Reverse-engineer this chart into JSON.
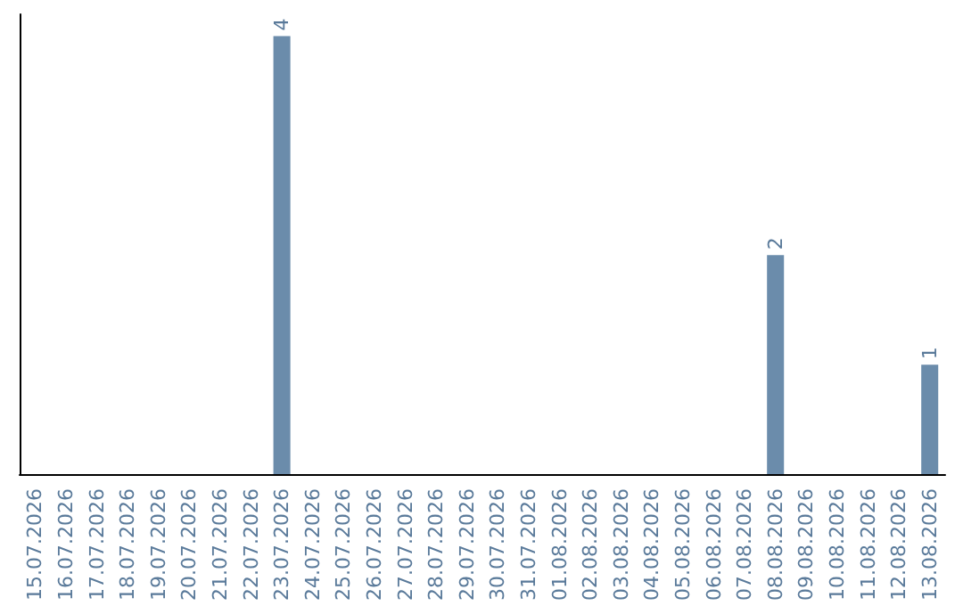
{
  "chart_data": {
    "type": "bar",
    "categories": [
      "15.07.2026",
      "16.07.2026",
      "17.07.2026",
      "18.07.2026",
      "19.07.2026",
      "20.07.2026",
      "21.07.2026",
      "22.07.2026",
      "23.07.2026",
      "24.07.2026",
      "25.07.2026",
      "26.07.2026",
      "27.07.2026",
      "28.07.2026",
      "29.07.2026",
      "30.07.2026",
      "31.07.2026",
      "01.08.2026",
      "02.08.2026",
      "03.08.2026",
      "04.08.2026",
      "05.08.2026",
      "06.08.2026",
      "07.08.2026",
      "08.08.2026",
      "09.08.2026",
      "10.08.2026",
      "11.08.2026",
      "12.08.2026",
      "13.08.2026"
    ],
    "values": [
      0,
      0,
      0,
      0,
      0,
      0,
      0,
      0,
      4,
      0,
      0,
      0,
      0,
      0,
      0,
      0,
      0,
      0,
      0,
      0,
      0,
      0,
      0,
      0,
      2,
      0,
      0,
      0,
      0,
      1
    ],
    "value_labels": [
      null,
      null,
      null,
      null,
      null,
      null,
      null,
      null,
      "4",
      null,
      null,
      null,
      null,
      null,
      null,
      null,
      null,
      null,
      null,
      null,
      null,
      null,
      null,
      null,
      "2",
      null,
      null,
      null,
      null,
      "1"
    ],
    "color": "#6b8cab",
    "tick_labels": "x"
  }
}
